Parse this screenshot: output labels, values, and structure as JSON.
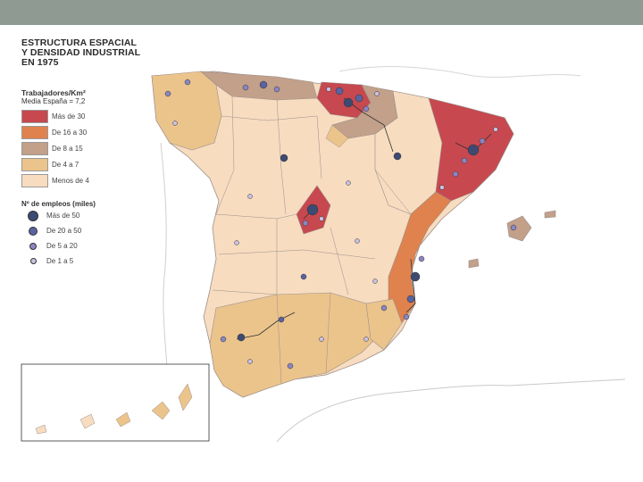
{
  "title_lines": [
    "ESTRUCTURA ESPACIAL",
    "Y DENSIDAD INDUSTRIAL",
    "EN 1975"
  ],
  "legend": {
    "density_header": "Trabajadores/Km²",
    "density_sub": "Media España = 7,2",
    "density_classes": [
      {
        "label": "Más de 30",
        "color": "#c8484f"
      },
      {
        "label": "De 16 a 30",
        "color": "#e0824e"
      },
      {
        "label": "De 8 a 15",
        "color": "#c2a08a"
      },
      {
        "label": "De 4 a 7",
        "color": "#ebc48c"
      },
      {
        "label": "Menos de 4",
        "color": "#f7dcc0"
      }
    ],
    "employment_header": "Nº de empleos (miles)",
    "employment_classes": [
      {
        "label": "Más de 50",
        "color": "#3d4a72"
      },
      {
        "label": "De 20 a 50",
        "color": "#5a62a0"
      },
      {
        "label": "De 5 a 20",
        "color": "#8a86c2"
      },
      {
        "label": "De 1 a 5",
        "color": "#c9c2e4"
      }
    ]
  },
  "colors": {
    "top_bar": "#8f9a93",
    "sea": "#ffffff",
    "border_land": "#ffffff",
    "province_lines": "#9b8f8a"
  }
}
